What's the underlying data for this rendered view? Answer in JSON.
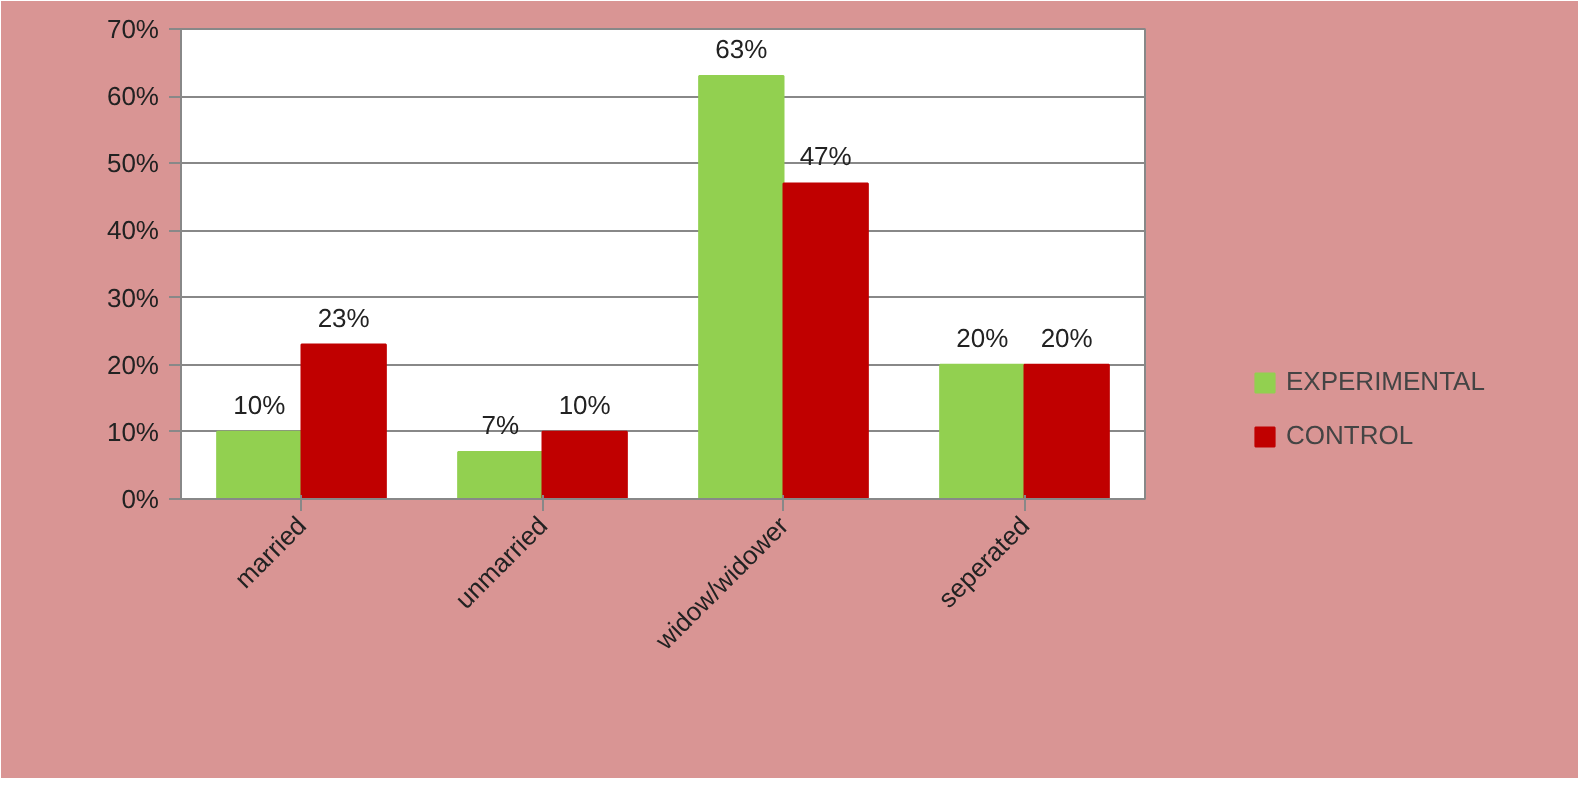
{
  "chart_data": {
    "type": "bar",
    "categories": [
      "married",
      "unmarried",
      "widow/widower",
      "seperated"
    ],
    "series": [
      {
        "name": "EXPERIMENTAL",
        "color": "#92d050",
        "values": [
          10,
          7,
          63,
          20
        ],
        "value_labels": [
          "10%",
          "7%",
          "63%",
          "20%"
        ]
      },
      {
        "name": "CONTROL",
        "color": "#c00000",
        "values": [
          23,
          10,
          47,
          20
        ],
        "value_labels": [
          "23%",
          "10%",
          "47%",
          "20%"
        ]
      }
    ],
    "ylim": [
      0,
      70
    ],
    "yticks": [
      {
        "value": 0,
        "label": "0%"
      },
      {
        "value": 10,
        "label": "10%"
      },
      {
        "value": 20,
        "label": "20%"
      },
      {
        "value": 30,
        "label": "30%"
      },
      {
        "value": 40,
        "label": "40%"
      },
      {
        "value": 50,
        "label": "50%"
      },
      {
        "value": 60,
        "label": "60%"
      },
      {
        "value": 70,
        "label": "70%"
      }
    ],
    "grid": "y",
    "legend": "right"
  }
}
